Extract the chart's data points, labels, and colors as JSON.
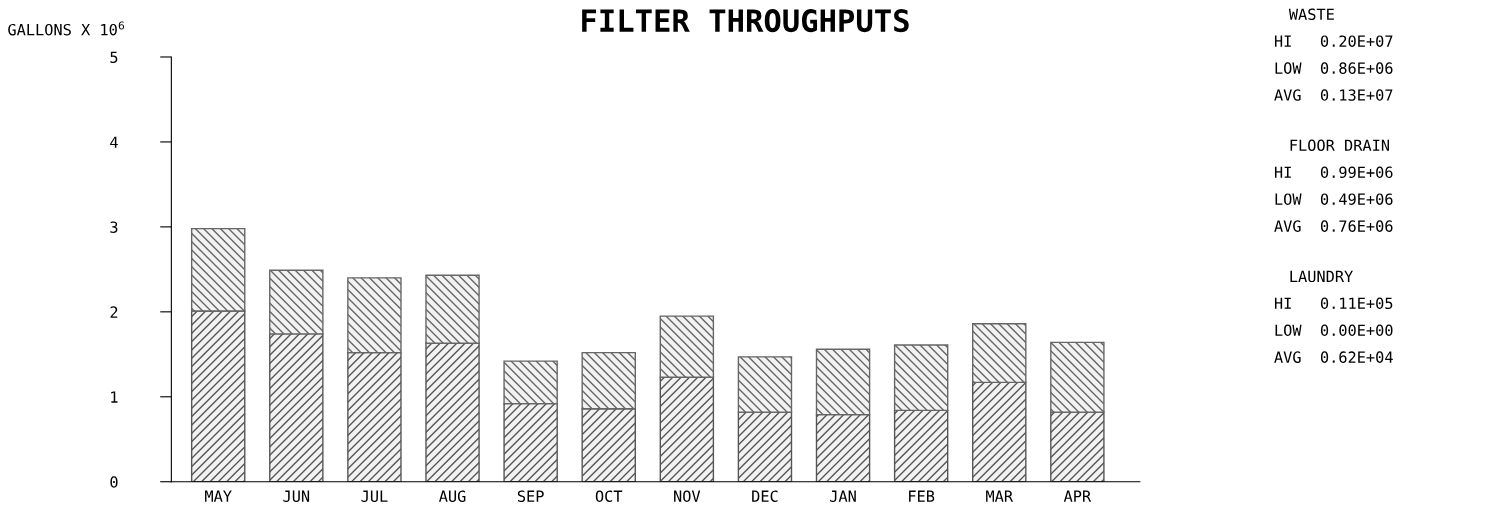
{
  "chart_data": {
    "type": "bar",
    "stacked": true,
    "title": "FILTER THROUGHPUTS",
    "ylabel": "GALLONS X 10$^{6}$",
    "categories": [
      "MAY",
      "JUN",
      "JUL",
      "AUG",
      "SEP",
      "OCT",
      "NOV",
      "DEC",
      "JAN",
      "FEB",
      "MAR",
      "APR"
    ],
    "series": [
      {
        "color": "#555555",
        "values": [
          2.01,
          1.74,
          1.52,
          1.63,
          0.92,
          0.86,
          1.23,
          0.82,
          0.79,
          0.84,
          1.17,
          0.82
        ]
      },
      {
        "color": "#666666",
        "values": [
          0.97,
          0.75,
          0.88,
          0.8,
          0.5,
          0.66,
          0.72,
          0.65,
          0.77,
          0.77,
          0.69,
          0.82
        ]
      }
    ],
    "ylim": [
      0,
      5
    ],
    "yticks": [
      0,
      1,
      2,
      3,
      4,
      5
    ],
    "grid": false,
    "legend": false,
    "annotations": [
      "WASTE",
      "HI   0.20E+07",
      "LOW  0.86E+06",
      "AVG  0.13E+07",
      "FLOOR DRAIN",
      "HI   0.99E+06",
      "LOW  0.49E+06",
      "AVG  0.76E+06",
      "LAUNDRY",
      "HI   0.11E+05",
      "LOW  0.00E+00",
      "AVG  0.62E+04"
    ]
  }
}
